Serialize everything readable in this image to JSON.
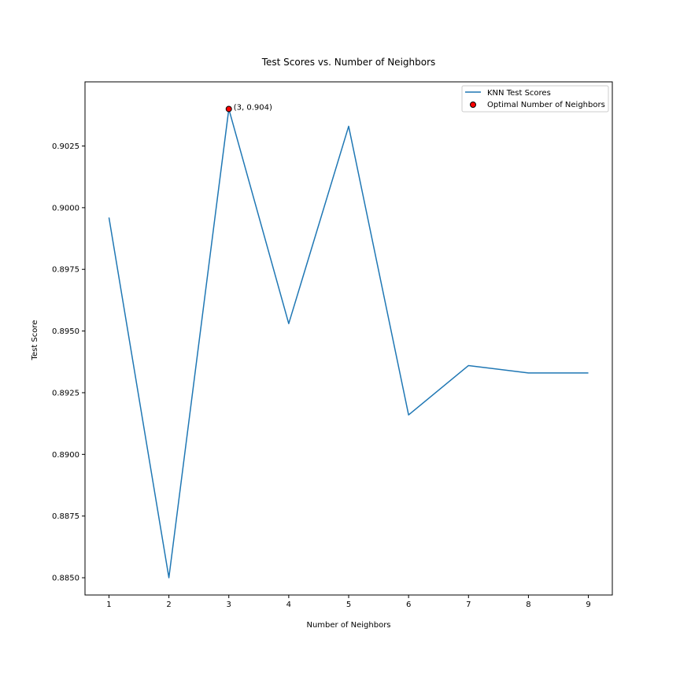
{
  "chart_data": {
    "type": "line",
    "title": "Test Scores vs. Number of Neighbors",
    "xlabel": "Number of Neighbors",
    "ylabel": "Test Score",
    "x": [
      1,
      2,
      3,
      4,
      5,
      6,
      7,
      8,
      9
    ],
    "xticks": [
      "1",
      "2",
      "3",
      "4",
      "5",
      "6",
      "7",
      "8",
      "9"
    ],
    "yticks": [
      "0.8850",
      "0.8875",
      "0.8900",
      "0.8925",
      "0.8950",
      "0.8975",
      "0.9000",
      "0.9025"
    ],
    "ytick_values": [
      0.885,
      0.8875,
      0.89,
      0.8925,
      0.895,
      0.8975,
      0.9,
      0.9025
    ],
    "xlim": [
      0.6,
      9.4
    ],
    "ylim": [
      0.8843,
      0.9051
    ],
    "grid": false,
    "legend_position": "top-right",
    "series": [
      {
        "name": "KNN Test Scores",
        "values": [
          0.8996,
          0.885,
          0.904,
          0.8953,
          0.9033,
          0.8916,
          0.8936,
          0.8933,
          0.8933
        ],
        "color": "#1f77b4"
      }
    ],
    "highlight": {
      "name": "Optimal Number of Neighbors",
      "x": 3,
      "y": 0.904,
      "label": "(3, 0.904)",
      "color": "#ff0000"
    }
  }
}
